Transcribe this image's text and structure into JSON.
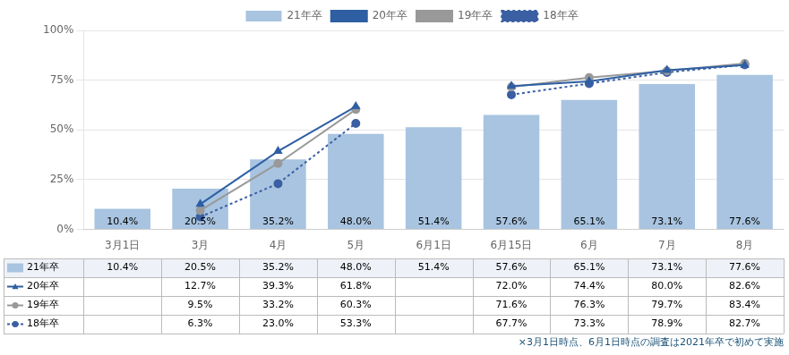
{
  "chart_data": {
    "type": "bar",
    "categories": [
      "3月1日",
      "3月",
      "4月",
      "5月",
      "6月1日",
      "6月15日",
      "6月",
      "7月",
      "8月"
    ],
    "series": [
      {
        "name": "21年卒",
        "type": "bar",
        "color": "#a8c4e0",
        "values": [
          10.4,
          20.5,
          35.2,
          48.0,
          51.4,
          57.6,
          65.1,
          73.1,
          77.6
        ],
        "value_labels": [
          "10.4%",
          "20.5%",
          "35.2%",
          "48.0%",
          "51.4%",
          "57.6%",
          "65.1%",
          "73.1%",
          "77.6%"
        ],
        "data_labels": true
      },
      {
        "name": "20年卒",
        "type": "line",
        "color": "#2e5fa3",
        "marker": "triangle",
        "line_style": "solid",
        "values": [
          null,
          12.7,
          39.3,
          61.8,
          null,
          72.0,
          74.4,
          80.0,
          82.6
        ],
        "value_labels": [
          null,
          "12.7%",
          "39.3%",
          "61.8%",
          null,
          "72.0%",
          "74.4%",
          "80.0%",
          "82.6%"
        ]
      },
      {
        "name": "19年卒",
        "type": "line",
        "color": "#999999",
        "marker": "circle",
        "line_style": "solid",
        "values": [
          null,
          9.5,
          33.2,
          60.3,
          null,
          71.6,
          76.3,
          79.7,
          83.4
        ],
        "value_labels": [
          null,
          "9.5%",
          "33.2%",
          "60.3%",
          null,
          "71.6%",
          "76.3%",
          "79.7%",
          "83.4%"
        ]
      },
      {
        "name": "18年卒",
        "type": "line",
        "color": "#3a5fa3",
        "marker": "circle",
        "line_style": "dotted",
        "values": [
          null,
          6.3,
          23.0,
          53.3,
          null,
          67.7,
          73.3,
          78.9,
          82.7
        ],
        "value_labels": [
          null,
          "6.3%",
          "23.0%",
          "53.3%",
          null,
          "67.7%",
          "73.3%",
          "78.9%",
          "82.7%"
        ]
      }
    ],
    "ylim": [
      0,
      100
    ],
    "yticks": [
      {
        "value": 0,
        "label": "0%"
      },
      {
        "value": 25,
        "label": "25%"
      },
      {
        "value": 50,
        "label": "50%"
      },
      {
        "value": 75,
        "label": "75%"
      },
      {
        "value": 100,
        "label": "100%"
      }
    ],
    "grid": true,
    "legend": "top",
    "annotations": [
      "×3月1日時点、6月1日時点の調査は2021年卒で初めて実施"
    ]
  }
}
